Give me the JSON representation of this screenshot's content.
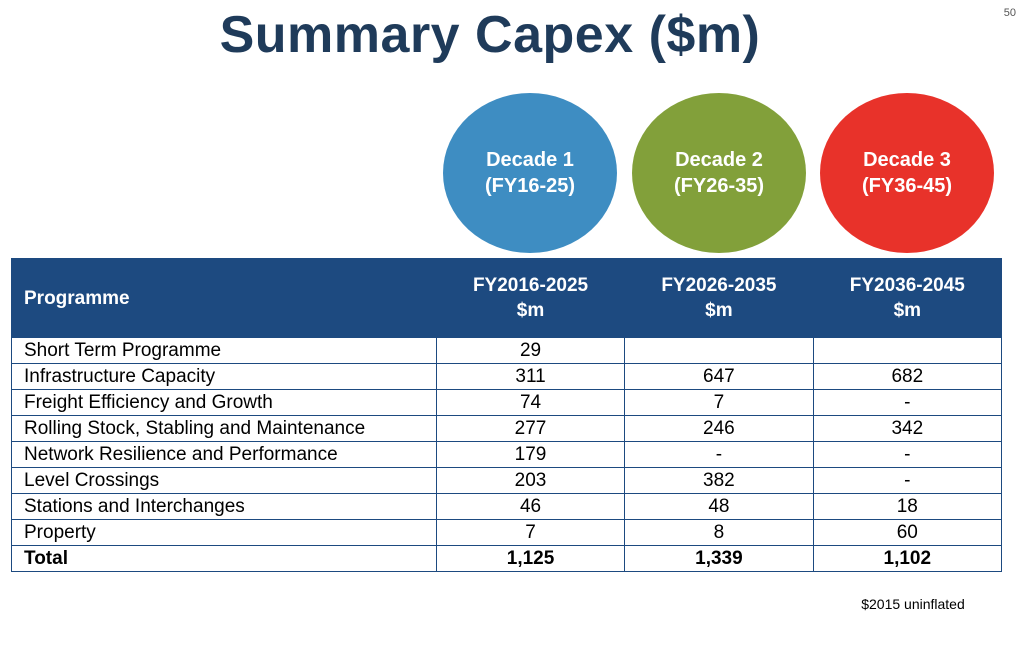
{
  "page_number": "50",
  "title": "Summary Capex ($m)",
  "decades": [
    {
      "line1": "Decade 1",
      "line2": "(FY16-25)",
      "color": "#3e8dc2"
    },
    {
      "line1": "Decade 2",
      "line2": "(FY26-35)",
      "color": "#82a03a"
    },
    {
      "line1": "Decade 3",
      "line2": "(FY36-45)",
      "color": "#e8322a"
    }
  ],
  "table": {
    "header": {
      "programme": "Programme",
      "col1_line1": "FY2016-2025",
      "col1_line2": "$m",
      "col2_line1": "FY2026-2035",
      "col2_line2": "$m",
      "col3_line1": "FY2036-2045",
      "col3_line2": "$m"
    },
    "rows": [
      {
        "label": "Short Term Programme",
        "v1": "29",
        "v2": "",
        "v3": ""
      },
      {
        "label": "Infrastructure Capacity",
        "v1": "311",
        "v2": "647",
        "v3": "682"
      },
      {
        "label": "Freight Efficiency and Growth",
        "v1": "74",
        "v2": "7",
        "v3": "-"
      },
      {
        "label": "Rolling Stock, Stabling and Maintenance",
        "v1": "277",
        "v2": "246",
        "v3": "342"
      },
      {
        "label": "Network Resilience and Performance",
        "v1": "179",
        "v2": "-",
        "v3": "-"
      },
      {
        "label": "Level Crossings",
        "v1": "203",
        "v2": "382",
        "v3": "-"
      },
      {
        "label": "Stations and Interchanges",
        "v1": "46",
        "v2": "48",
        "v3": "18"
      },
      {
        "label": "Property",
        "v1": "7",
        "v2": "8",
        "v3": "60"
      }
    ],
    "total": {
      "label": "Total",
      "v1": "1,125",
      "v2": "1,339",
      "v3": "1,102"
    }
  },
  "footnote": "$2015 uninflated"
}
